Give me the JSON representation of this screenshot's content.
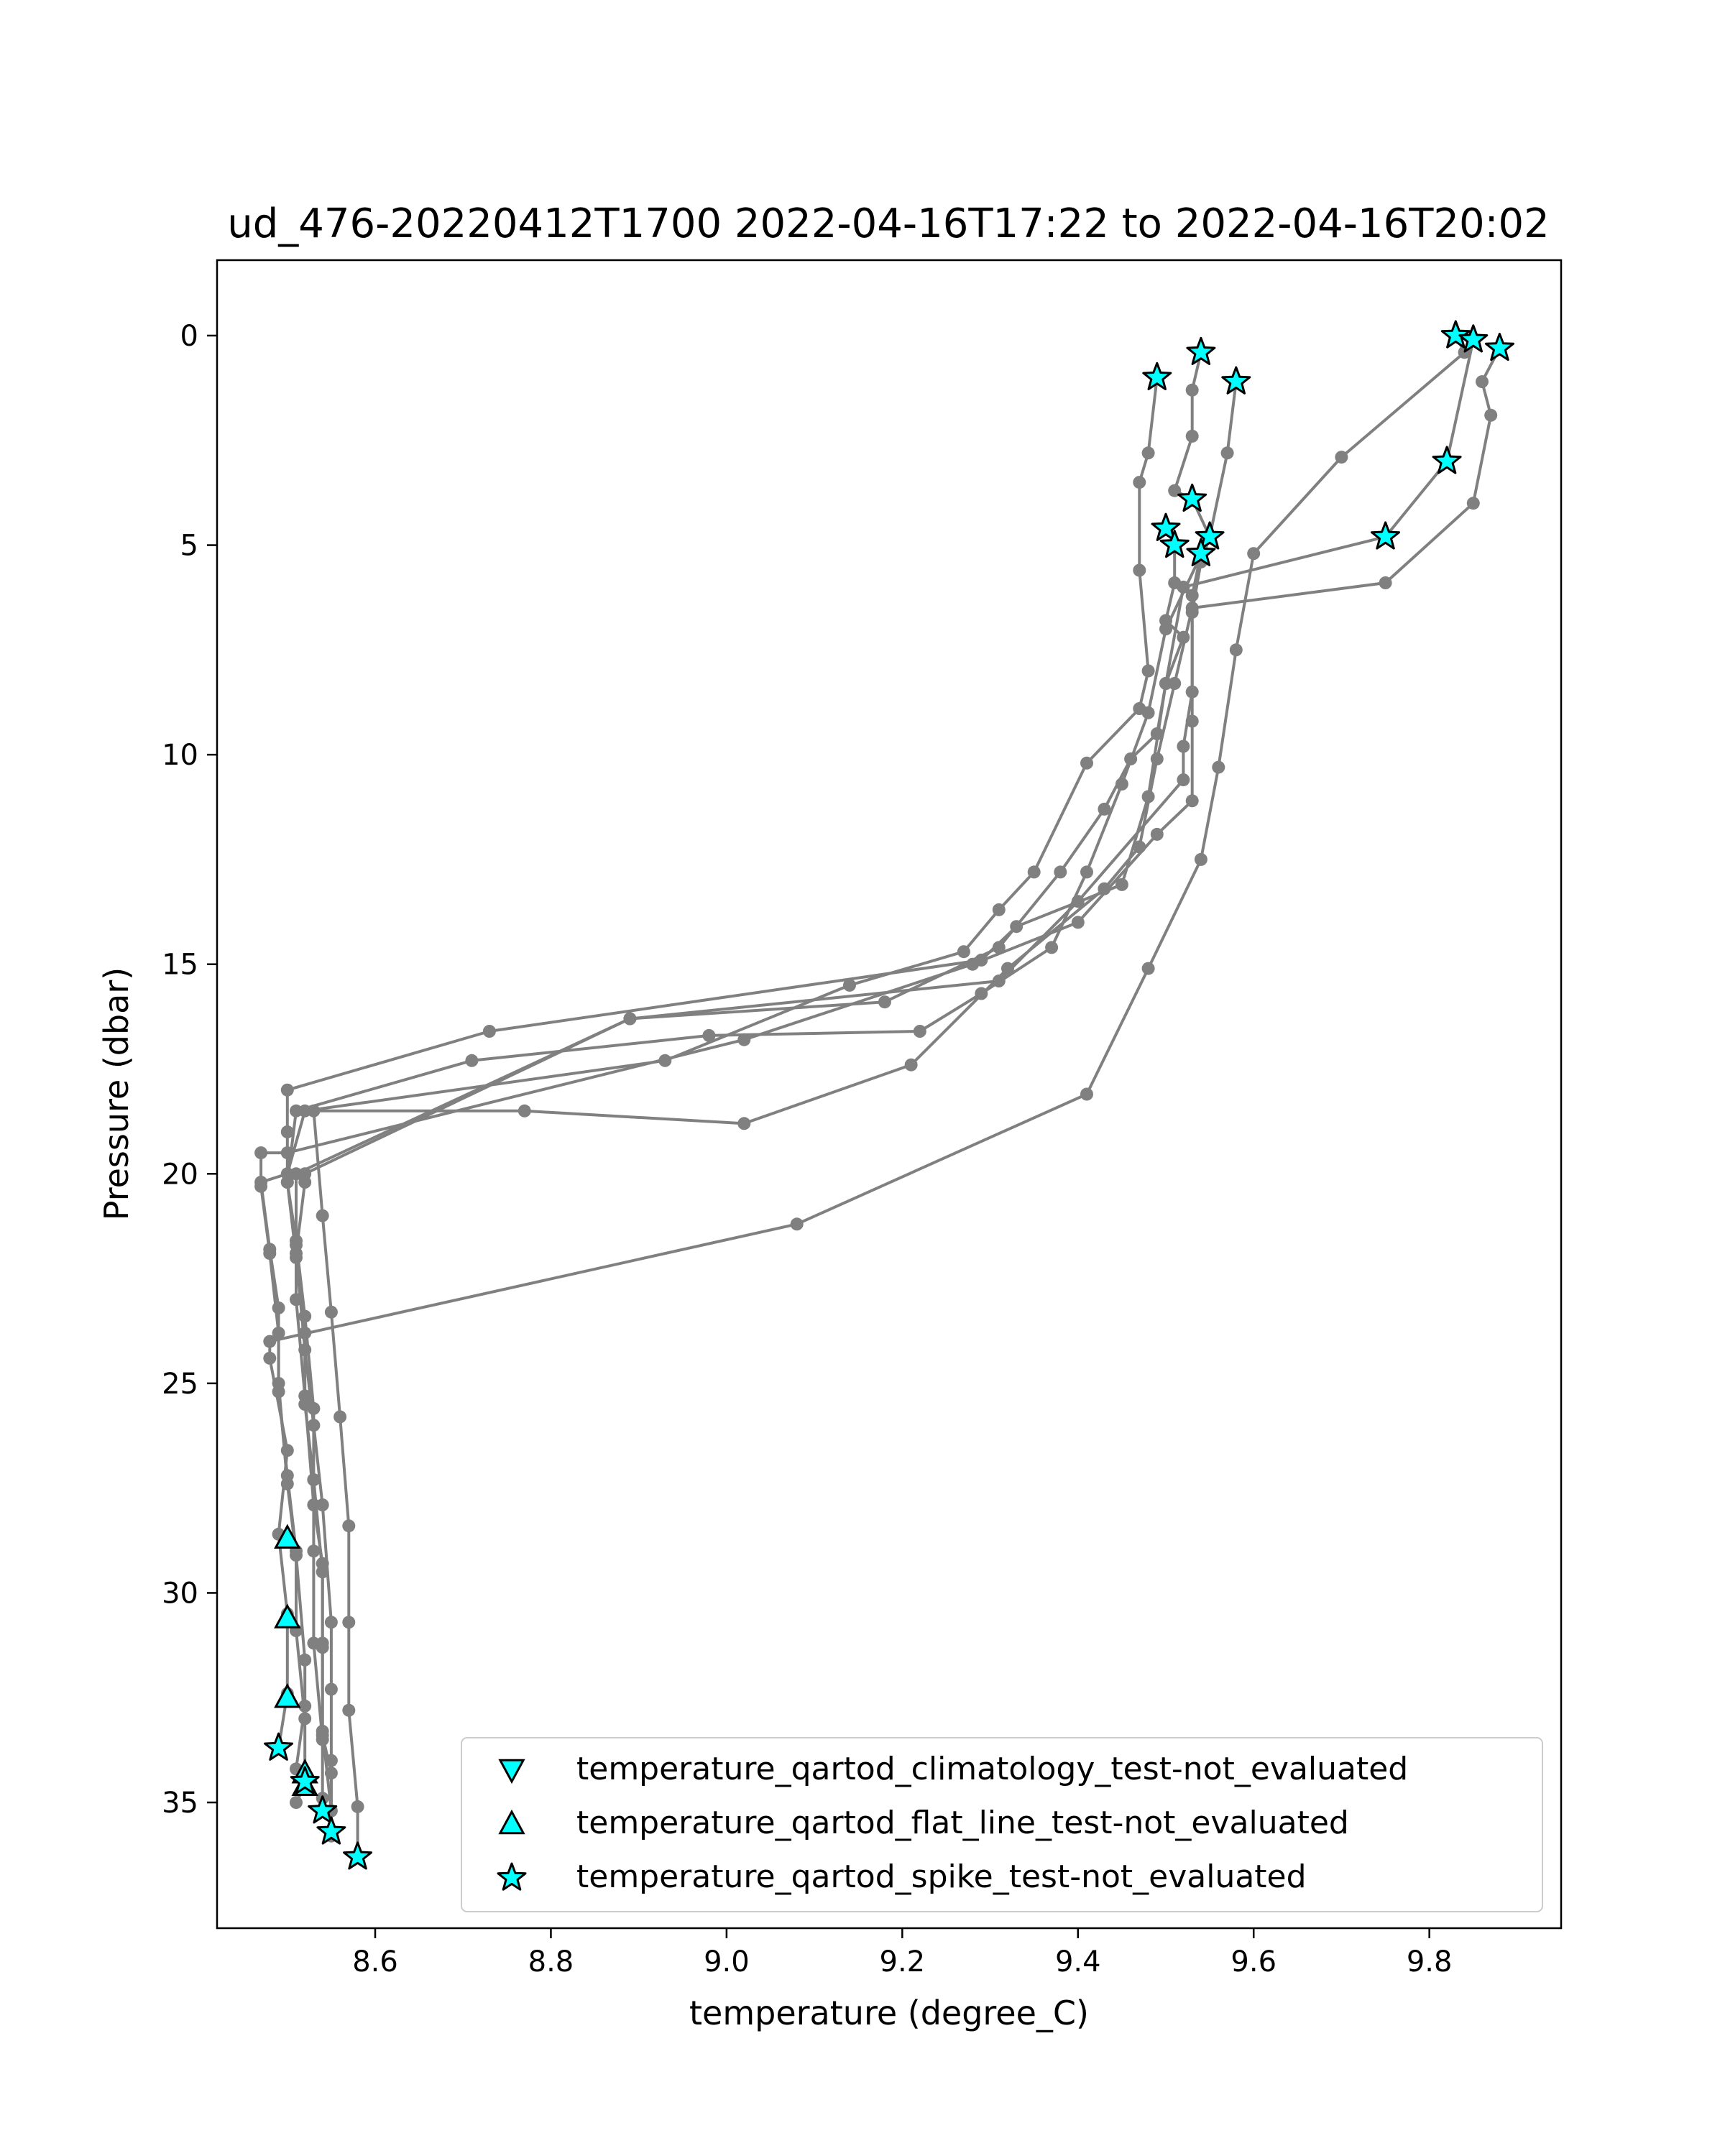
{
  "chart_data": {
    "type": "line",
    "title": "ud_476-20220412T1700 2022-04-16T17:22 to 2022-04-16T20:02",
    "xlabel": "temperature (degree_C)",
    "ylabel": "Pressure (dbar)",
    "xlim": [
      8.42,
      9.95
    ],
    "ylim": [
      38.0,
      -1.8
    ],
    "y_inverted": true,
    "xticks": [
      8.6,
      8.8,
      9.0,
      9.2,
      9.4,
      9.6,
      9.8
    ],
    "xtick_labels": [
      "8.6",
      "8.8",
      "9.0",
      "9.2",
      "9.4",
      "9.6",
      "9.8"
    ],
    "yticks": [
      0,
      5,
      10,
      15,
      20,
      25,
      30,
      35
    ],
    "ytick_labels": [
      "0",
      "5",
      "10",
      "15",
      "20",
      "25",
      "30",
      "35"
    ],
    "grid": false,
    "legend_position": "lower-right",
    "line_color": "#808080",
    "flag_color": "#00FFFF",
    "flag_edge_color": "#000000",
    "profiles": [
      {
        "points": [
          [
            9.83,
            0.0
          ],
          [
            9.84,
            0.4
          ],
          [
            9.7,
            2.9
          ],
          [
            9.6,
            5.2
          ],
          [
            9.58,
            7.5
          ],
          [
            9.56,
            10.3
          ],
          [
            9.54,
            12.5
          ],
          [
            9.48,
            15.1
          ],
          [
            9.41,
            18.1
          ],
          [
            9.08,
            21.2
          ],
          [
            8.48,
            24.0
          ],
          [
            8.48,
            24.4
          ],
          [
            8.5,
            26.6
          ],
          [
            8.49,
            28.6
          ],
          [
            8.5,
            30.5
          ],
          [
            8.5,
            32.4
          ],
          [
            8.49,
            33.7
          ]
        ]
      },
      {
        "points": [
          [
            9.88,
            0.3
          ],
          [
            9.86,
            1.1
          ],
          [
            9.87,
            1.9
          ],
          [
            9.85,
            4.0
          ],
          [
            9.75,
            5.9
          ],
          [
            9.53,
            6.5
          ],
          [
            9.51,
            8.3
          ],
          [
            9.49,
            10.1
          ],
          [
            9.47,
            12.2
          ],
          [
            9.43,
            13.2
          ],
          [
            9.32,
            15.1
          ],
          [
            9.21,
            17.4
          ],
          [
            9.02,
            18.8
          ],
          [
            8.77,
            18.5
          ],
          [
            8.53,
            18.5
          ],
          [
            8.54,
            21.0
          ],
          [
            8.55,
            23.3
          ],
          [
            8.56,
            25.8
          ],
          [
            8.57,
            28.4
          ],
          [
            8.57,
            30.7
          ],
          [
            8.57,
            32.8
          ],
          [
            8.58,
            35.1
          ],
          [
            8.58,
            36.3
          ]
        ]
      },
      {
        "points": [
          [
            9.85,
            0.1
          ],
          [
            9.82,
            3.0
          ],
          [
            9.75,
            4.8
          ],
          [
            9.52,
            6.0
          ],
          [
            9.5,
            8.3
          ],
          [
            9.48,
            11.0
          ],
          [
            9.45,
            13.1
          ],
          [
            9.33,
            14.1
          ],
          [
            9.29,
            14.9
          ],
          [
            8.73,
            16.6
          ],
          [
            8.5,
            18.0
          ],
          [
            8.5,
            19.0
          ],
          [
            8.5,
            20.2
          ],
          [
            8.51,
            21.6
          ],
          [
            8.52,
            23.4
          ],
          [
            8.53,
            25.6
          ],
          [
            8.53,
            27.3
          ],
          [
            8.54,
            29.5
          ],
          [
            8.54,
            31.2
          ],
          [
            8.54,
            33.4
          ],
          [
            8.55,
            34.3
          ],
          [
            8.55,
            35.7
          ]
        ]
      },
      {
        "points": [
          [
            9.54,
            0.4
          ],
          [
            9.53,
            1.3
          ],
          [
            9.53,
            2.4
          ],
          [
            9.51,
            3.7
          ],
          [
            9.53,
            3.9
          ],
          [
            9.55,
            4.8
          ],
          [
            9.5,
            7.0
          ],
          [
            9.48,
            9.0
          ],
          [
            9.45,
            10.7
          ],
          [
            9.41,
            12.8
          ],
          [
            9.37,
            14.6
          ],
          [
            9.29,
            15.7
          ],
          [
            9.22,
            16.6
          ],
          [
            8.98,
            16.7
          ],
          [
            8.71,
            17.3
          ],
          [
            8.51,
            18.5
          ],
          [
            8.5,
            20.2
          ],
          [
            8.51,
            22.0
          ],
          [
            8.52,
            23.8
          ],
          [
            8.52,
            25.5
          ],
          [
            8.53,
            27.3
          ],
          [
            8.53,
            29.0
          ],
          [
            8.53,
            31.2
          ],
          [
            8.54,
            33.5
          ],
          [
            8.54,
            34.9
          ],
          [
            8.54,
            35.2
          ]
        ]
      },
      {
        "points": [
          [
            9.49,
            1.0
          ],
          [
            9.48,
            2.8
          ],
          [
            9.47,
            3.5
          ],
          [
            9.47,
            5.6
          ],
          [
            9.48,
            8.0
          ],
          [
            9.47,
            8.9
          ],
          [
            9.41,
            10.2
          ],
          [
            9.35,
            12.8
          ],
          [
            9.31,
            13.7
          ],
          [
            9.27,
            14.7
          ],
          [
            9.14,
            15.5
          ],
          [
            8.93,
            17.3
          ],
          [
            8.52,
            18.5
          ],
          [
            8.5,
            20.0
          ],
          [
            8.47,
            20.2
          ],
          [
            8.48,
            21.8
          ],
          [
            8.49,
            23.2
          ],
          [
            8.49,
            25.0
          ],
          [
            8.5,
            27.4
          ],
          [
            8.51,
            29.1
          ],
          [
            8.52,
            31.6
          ],
          [
            8.52,
            32.7
          ],
          [
            8.51,
            34.2
          ],
          [
            8.52,
            34.5
          ]
        ]
      },
      {
        "points": [
          [
            9.58,
            1.1
          ],
          [
            9.57,
            2.8
          ],
          [
            9.55,
            4.8
          ],
          [
            9.54,
            5.4
          ],
          [
            9.53,
            6.6
          ],
          [
            9.53,
            9.2
          ],
          [
            9.53,
            11.1
          ],
          [
            9.49,
            11.9
          ],
          [
            9.4,
            14.0
          ],
          [
            9.28,
            15.0
          ],
          [
            9.02,
            16.8
          ],
          [
            8.5,
            19.5
          ],
          [
            8.47,
            19.5
          ],
          [
            8.47,
            20.3
          ],
          [
            8.48,
            21.9
          ],
          [
            8.49,
            23.8
          ],
          [
            8.49,
            25.2
          ],
          [
            8.5,
            27.2
          ],
          [
            8.51,
            29.0
          ],
          [
            8.51,
            30.9
          ],
          [
            8.52,
            33.0
          ],
          [
            8.52,
            34.6
          ],
          [
            8.51,
            35.0
          ]
        ]
      },
      {
        "points": [
          [
            9.5,
            4.6
          ],
          [
            9.51,
            5.0
          ],
          [
            9.51,
            5.9
          ],
          [
            9.5,
            6.8
          ],
          [
            9.52,
            7.2
          ],
          [
            9.5,
            8.3
          ],
          [
            9.49,
            9.5
          ],
          [
            9.46,
            10.1
          ],
          [
            9.43,
            11.3
          ],
          [
            9.38,
            12.8
          ],
          [
            9.31,
            14.6
          ],
          [
            9.18,
            15.9
          ],
          [
            8.89,
            16.3
          ],
          [
            8.52,
            20.0
          ],
          [
            8.52,
            20.2
          ],
          [
            8.51,
            21.9
          ],
          [
            8.52,
            24.2
          ],
          [
            8.53,
            26.0
          ],
          [
            8.54,
            27.9
          ],
          [
            8.55,
            30.7
          ],
          [
            8.55,
            32.3
          ],
          [
            8.55,
            34.0
          ],
          [
            8.55,
            35.8
          ]
        ]
      },
      {
        "points": [
          [
            9.54,
            5.2
          ],
          [
            9.53,
            6.2
          ],
          [
            9.53,
            8.5
          ],
          [
            9.52,
            9.8
          ],
          [
            9.52,
            10.6
          ],
          [
            9.4,
            13.5
          ],
          [
            9.31,
            15.4
          ],
          [
            8.89,
            16.3
          ],
          [
            8.51,
            20.0
          ],
          [
            8.51,
            21.7
          ],
          [
            8.51,
            23.0
          ],
          [
            8.52,
            25.3
          ],
          [
            8.53,
            27.9
          ],
          [
            8.54,
            29.3
          ],
          [
            8.54,
            31.3
          ],
          [
            8.54,
            33.3
          ],
          [
            8.55,
            35.2
          ]
        ]
      }
    ],
    "flags": {
      "climatology": [],
      "flat_line": [
        [
          8.5,
          28.7
        ],
        [
          8.5,
          30.6
        ],
        [
          8.5,
          32.5
        ],
        [
          8.52,
          34.3
        ],
        [
          8.52,
          34.6
        ]
      ],
      "spike": [
        [
          9.83,
          0.0
        ],
        [
          9.85,
          0.1
        ],
        [
          9.88,
          0.3
        ],
        [
          9.54,
          0.4
        ],
        [
          9.49,
          1.0
        ],
        [
          9.58,
          1.1
        ],
        [
          9.82,
          3.0
        ],
        [
          9.53,
          3.9
        ],
        [
          9.5,
          4.6
        ],
        [
          9.55,
          4.8
        ],
        [
          9.75,
          4.8
        ],
        [
          9.51,
          5.0
        ],
        [
          9.54,
          5.2
        ],
        [
          8.49,
          33.7
        ],
        [
          8.52,
          34.5
        ],
        [
          8.54,
          35.2
        ],
        [
          8.55,
          35.7
        ],
        [
          8.58,
          36.3
        ]
      ]
    },
    "series": [
      {
        "name": "temperature_qartod_climatology_test-not_evaluated",
        "marker": "triangle-down"
      },
      {
        "name": "temperature_qartod_flat_line_test-not_evaluated",
        "marker": "triangle-up"
      },
      {
        "name": "temperature_qartod_spike_test-not_evaluated",
        "marker": "star"
      }
    ]
  }
}
